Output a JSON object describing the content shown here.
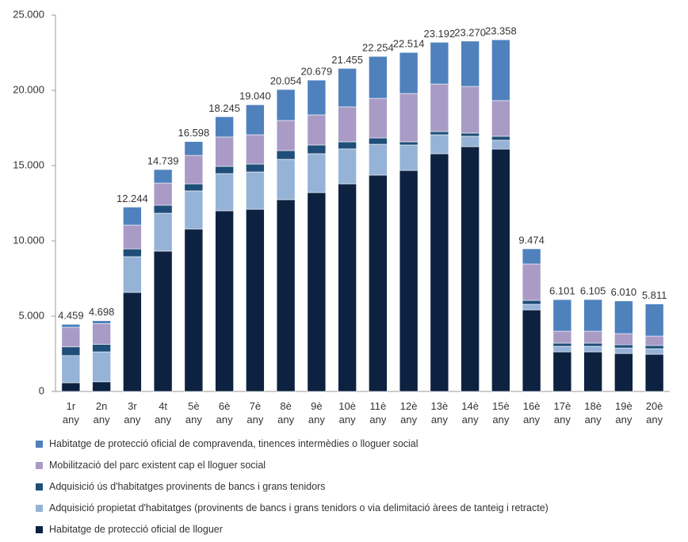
{
  "chart_data": {
    "type": "stacked_bar",
    "categories": [
      "1r any",
      "2n any",
      "3r any",
      "4t any",
      "5è any",
      "6è any",
      "7è any",
      "8è any",
      "9è any",
      "10è any",
      "11è any",
      "12è any",
      "13è any",
      "14è any",
      "15è any",
      "16è any",
      "17è any",
      "18è any",
      "19è any",
      "20è any"
    ],
    "series": [
      {
        "name": "Habitatge de protecció oficial de lloguer",
        "color": "#0d2240",
        "values": [
          580,
          640,
          6580,
          9320,
          10790,
          12000,
          12100,
          12740,
          13210,
          13790,
          14370,
          14680,
          15790,
          16260,
          16100,
          5420,
          2630,
          2630,
          2520,
          2470
        ]
      },
      {
        "name": "Adquisició propietat d'habitatges (provinents de bancs i grans tenidors o via delimitació àrees de tanteig i retracte)",
        "color": "#95b3d7",
        "values": [
          1800,
          1990,
          2370,
          2520,
          2530,
          2470,
          2480,
          2680,
          2580,
          2320,
          2050,
          1690,
          1260,
          690,
          590,
          370,
          370,
          370,
          370,
          370
        ]
      },
      {
        "name": "Adquisició ús d'habitatges provinents de bancs i grans tenidors",
        "color": "#1f4e79",
        "values": [
          580,
          500,
          520,
          530,
          470,
          480,
          520,
          580,
          580,
          470,
          420,
          210,
          210,
          210,
          260,
          260,
          210,
          210,
          210,
          210
        ]
      },
      {
        "name": "Mobilització del parc existent cap el lloguer social",
        "color": "#a99bc6",
        "values": [
          1300,
          1370,
          1580,
          1470,
          1890,
          1950,
          1950,
          2000,
          2000,
          2320,
          2630,
          3210,
          3160,
          3100,
          2370,
          2420,
          790,
          790,
          740,
          630
        ]
      },
      {
        "name": "Habitatge de protecció oficial de compravenda, tinences intermèdies o lloguer social",
        "color": "#4f81bd",
        "values": [
          199,
          198,
          1194,
          899,
          918,
          1345,
          1990,
          2054,
          2309,
          2555,
          2784,
          2724,
          2772,
          3010,
          4038,
          1004,
          2101,
          2105,
          2170,
          2131
        ]
      }
    ],
    "totals": {
      "values": [
        4459,
        4698,
        12244,
        14739,
        16598,
        18245,
        19040,
        20054,
        20679,
        21455,
        22254,
        22514,
        23192,
        23270,
        23358,
        9474,
        6101,
        6105,
        6010,
        5811
      ],
      "value_labels": [
        "4.459",
        "4.698",
        "12.244",
        "14.739",
        "16.598",
        "18.245",
        "19.040",
        "20.054",
        "20.679",
        "21.455",
        "22.254",
        "22.514",
        "23.192",
        "23.270",
        "23.358",
        "9.474",
        "6.101",
        "6.105",
        "6.010",
        "5.811"
      ]
    },
    "ylim": [
      0,
      25000
    ],
    "yticks": [
      0,
      {
        "value": 5000,
        "label": "5.000"
      },
      {
        "value": 10000,
        "label": "10.000"
      },
      {
        "value": 15000,
        "label": "15.000"
      },
      {
        "value": 20000,
        "label": "20.000"
      },
      {
        "value": 25000,
        "label": "25.000"
      }
    ],
    "legend": "bottom"
  }
}
